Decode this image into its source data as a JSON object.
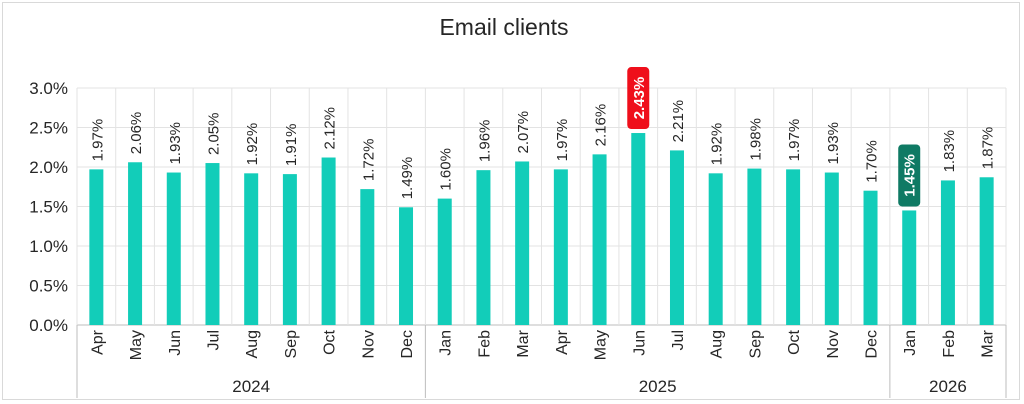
{
  "chart_data": {
    "type": "bar",
    "title": "Email clients",
    "ylim": [
      0,
      0.03
    ],
    "yticks": [
      0,
      0.005,
      0.01,
      0.015,
      0.02,
      0.025,
      0.03
    ],
    "ytick_labels": [
      "0.0%",
      "0.5%",
      "1.0%",
      "1.5%",
      "2.0%",
      "2.5%",
      "3.0%"
    ],
    "categories": [
      "Apr",
      "May",
      "Jun",
      "Jul",
      "Aug",
      "Sep",
      "Oct",
      "Nov",
      "Dec",
      "Jan",
      "Feb",
      "Mar",
      "Apr",
      "May",
      "Jun",
      "Jul",
      "Aug",
      "Sep",
      "Oct",
      "Nov",
      "Dec",
      "Jan",
      "Feb",
      "Mar"
    ],
    "values": [
      0.0197,
      0.0206,
      0.0193,
      0.0205,
      0.0192,
      0.0191,
      0.0212,
      0.0172,
      0.0149,
      0.016,
      0.0196,
      0.0207,
      0.0197,
      0.0216,
      0.0243,
      0.0221,
      0.0192,
      0.0198,
      0.0197,
      0.0193,
      0.017,
      0.0145,
      0.0183,
      0.0187
    ],
    "labels": [
      "1.97%",
      "2.06%",
      "1.93%",
      "2.05%",
      "1.92%",
      "1.91%",
      "2.12%",
      "1.72%",
      "1.49%",
      "1.60%",
      "1.96%",
      "2.07%",
      "1.97%",
      "2.16%",
      "2.43%",
      "2.21%",
      "1.92%",
      "1.98%",
      "1.97%",
      "1.93%",
      "1.70%",
      "1.45%",
      "1.83%",
      "1.87%"
    ],
    "years": [
      {
        "label": "2024",
        "start": 0,
        "end": 8
      },
      {
        "label": "2025",
        "start": 9,
        "end": 20
      },
      {
        "label": "2026",
        "start": 21,
        "end": 23
      }
    ],
    "max_index": 14,
    "min_index": 21,
    "grid": true
  },
  "colors": {
    "bar": "#12cdb9",
    "max_badge": "#ef0f1b",
    "min_badge": "#0f7a64",
    "grid": "#e3e3e3",
    "axis": "#bdbdbd",
    "text": "#262626"
  }
}
